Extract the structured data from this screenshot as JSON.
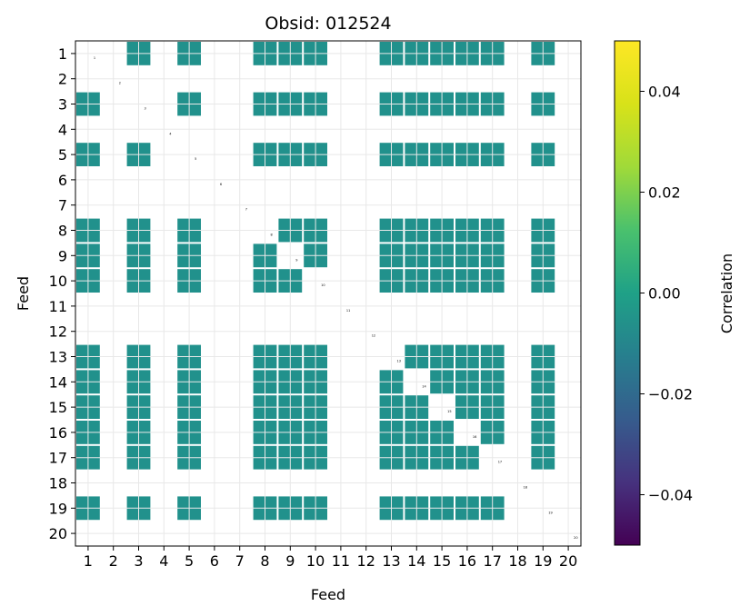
{
  "chart_data": {
    "type": "heatmap",
    "title": "Obsid: 012524",
    "xlabel": "Feed",
    "ylabel": "Feed",
    "x_ticks": [
      "1",
      "2",
      "3",
      "4",
      "5",
      "6",
      "7",
      "8",
      "9",
      "10",
      "11",
      "12",
      "13",
      "14",
      "15",
      "16",
      "17",
      "18",
      "19",
      "20"
    ],
    "y_ticks": [
      "1",
      "2",
      "3",
      "4",
      "5",
      "6",
      "7",
      "8",
      "9",
      "10",
      "11",
      "12",
      "13",
      "14",
      "15",
      "16",
      "17",
      "18",
      "19",
      "20"
    ],
    "diagonal_labels": [
      "1",
      "2",
      "3",
      "4",
      "5",
      "6",
      "7",
      "8",
      "9",
      "10",
      "11",
      "12",
      "13",
      "14",
      "15",
      "16",
      "17",
      "18",
      "19",
      "20"
    ],
    "colorbar": {
      "label": "Correlation",
      "ticks": [
        "−0.04",
        "−0.02",
        "0.00",
        "0.02",
        "0.04"
      ],
      "tick_values": [
        -0.04,
        -0.02,
        0.0,
        0.02,
        0.04
      ],
      "range": [
        -0.05,
        0.05
      ],
      "colormap": "viridis"
    },
    "grid": true,
    "cell_value": 0.0,
    "cell_color": "#21918c",
    "populated_feeds": [
      1,
      3,
      5,
      8,
      9,
      10,
      13,
      14,
      15,
      16,
      17,
      19
    ],
    "empty_feeds": [
      2,
      4,
      6,
      7,
      11,
      12,
      18,
      20
    ]
  }
}
